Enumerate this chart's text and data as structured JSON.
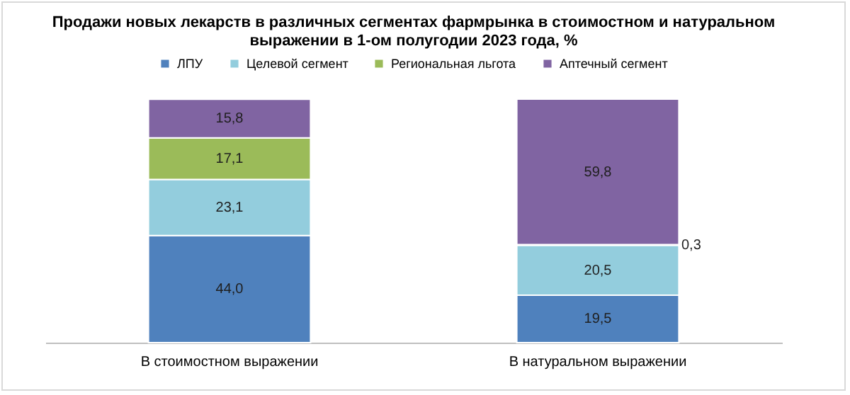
{
  "chart_data": {
    "type": "bar",
    "stacked": true,
    "title": "Продажи новых лекарств в различных сегментах фармрынка в стоимостном и натуральном выражении в 1-ом полугодии 2023 года, %",
    "categories": [
      "В стоимостном выражении",
      "В натуральном выражении"
    ],
    "series": [
      {
        "name": "ЛПУ",
        "color": "#4f81bd",
        "values": [
          44.0,
          19.5
        ],
        "value_labels": [
          "44,0",
          "19,5"
        ]
      },
      {
        "name": "Целевой сегмент",
        "color": "#93cddd",
        "values": [
          23.1,
          20.5
        ],
        "value_labels": [
          "23,1",
          "20,5"
        ]
      },
      {
        "name": "Региональная льгота",
        "color": "#9bbb59",
        "values": [
          17.1,
          0.3
        ],
        "value_labels": [
          "17,1",
          "0,3"
        ]
      },
      {
        "name": "Аптечный сегмент",
        "color": "#8064a2",
        "values": [
          15.8,
          59.8
        ],
        "value_labels": [
          "15,8",
          "59,8"
        ]
      }
    ],
    "legend": "top",
    "grid": false
  }
}
